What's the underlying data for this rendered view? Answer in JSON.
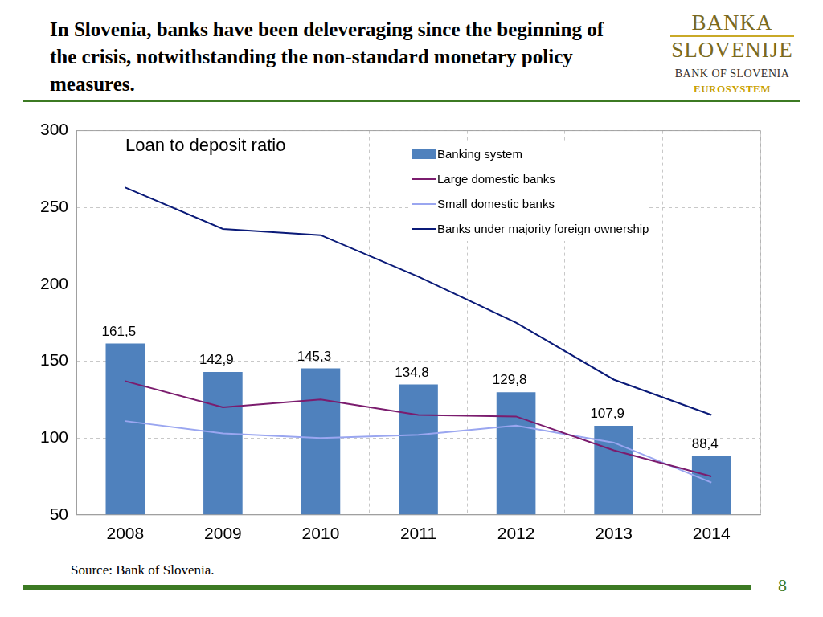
{
  "header": {
    "title": "In Slovenia, banks have been deleveraging since the beginning of the crisis, notwithstanding the non-standard monetary policy measures.",
    "logo": [
      "BANKA",
      "SLOVENIJE",
      "BANK OF SLOVENIA",
      "EUROSYSTEM"
    ]
  },
  "chart_data": {
    "type": "bar",
    "title": "Loan to deposit ratio",
    "categories": [
      "2008",
      "2009",
      "2010",
      "2011",
      "2012",
      "2013",
      "2014"
    ],
    "series": [
      {
        "name": "Banking system",
        "type": "bar",
        "color": "#4f81bd",
        "data_labels": true,
        "values": [
          161.5,
          142.9,
          145.3,
          134.8,
          129.8,
          107.9,
          88.4
        ],
        "value_labels": [
          "161,5",
          "142,9",
          "145,3",
          "134,8",
          "129,8",
          "107,9",
          "88,4"
        ]
      },
      {
        "name": "Large domestic banks",
        "type": "line",
        "color": "#7b1c6e",
        "line_style": "solid",
        "values": [
          137,
          120,
          125,
          115,
          114,
          92,
          75
        ]
      },
      {
        "name": "Small domestic banks",
        "type": "line",
        "color": "#9aa6f0",
        "line_style": "solid",
        "values": [
          111,
          103,
          100,
          102,
          108,
          97,
          71
        ]
      },
      {
        "name": "Banks under majority foreign ownership",
        "type": "line",
        "color": "#0a1a78",
        "line_style": "solid",
        "values": [
          263,
          236,
          232,
          205,
          175,
          138,
          115
        ]
      }
    ],
    "ylim": [
      50,
      300
    ],
    "yticks": [
      50,
      100,
      150,
      200,
      250,
      300
    ],
    "grid": true,
    "legend": "upper right"
  },
  "footer": {
    "source": "Source: Bank of Slovenia.",
    "page": "8"
  }
}
